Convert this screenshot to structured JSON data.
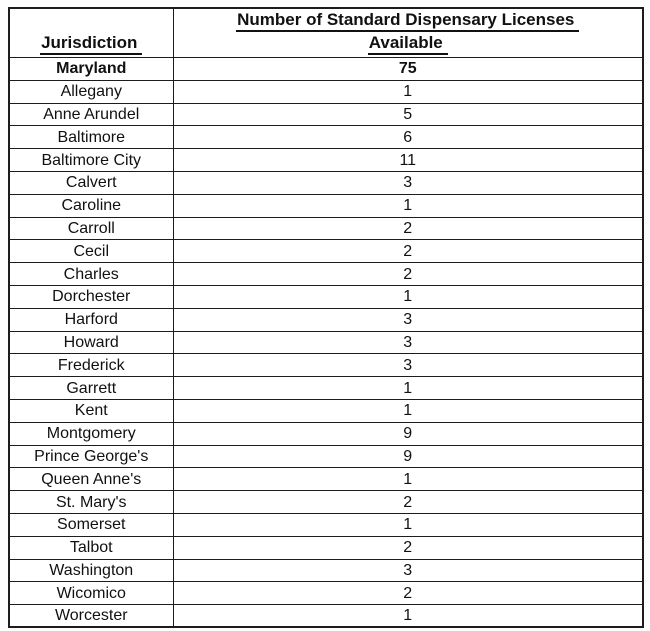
{
  "table": {
    "col1_header": "Jurisdiction",
    "col2_header_line1": "Number of Standard Dispensary Licenses",
    "col2_header_line2": "Available",
    "border_color": "#1c1c1c",
    "text_color": "#111111",
    "background_color": "#ffffff",
    "rows": [
      {
        "name": "Maryland",
        "value": "75",
        "bold": true
      },
      {
        "name": "Allegany",
        "value": "1"
      },
      {
        "name": "Anne Arundel",
        "value": "5"
      },
      {
        "name": "Baltimore",
        "value": "6"
      },
      {
        "name": "Baltimore City",
        "value": "11"
      },
      {
        "name": "Calvert",
        "value": "3"
      },
      {
        "name": "Caroline",
        "value": "1"
      },
      {
        "name": "Carroll",
        "value": "2"
      },
      {
        "name": "Cecil",
        "value": "2"
      },
      {
        "name": "Charles",
        "value": "2"
      },
      {
        "name": "Dorchester",
        "value": "1"
      },
      {
        "name": "Harford",
        "value": "3"
      },
      {
        "name": "Howard",
        "value": "3"
      },
      {
        "name": "Frederick",
        "value": "3"
      },
      {
        "name": "Garrett",
        "value": "1"
      },
      {
        "name": "Kent",
        "value": "1"
      },
      {
        "name": "Montgomery",
        "value": "9"
      },
      {
        "name": "Prince George's",
        "value": "9"
      },
      {
        "name": "Queen Anne's",
        "value": "1"
      },
      {
        "name": "St. Mary's",
        "value": "2"
      },
      {
        "name": "Somerset",
        "value": "1"
      },
      {
        "name": "Talbot",
        "value": "2"
      },
      {
        "name": "Washington",
        "value": "3"
      },
      {
        "name": "Wicomico",
        "value": "2"
      },
      {
        "name": "Worcester",
        "value": "1"
      }
    ]
  }
}
